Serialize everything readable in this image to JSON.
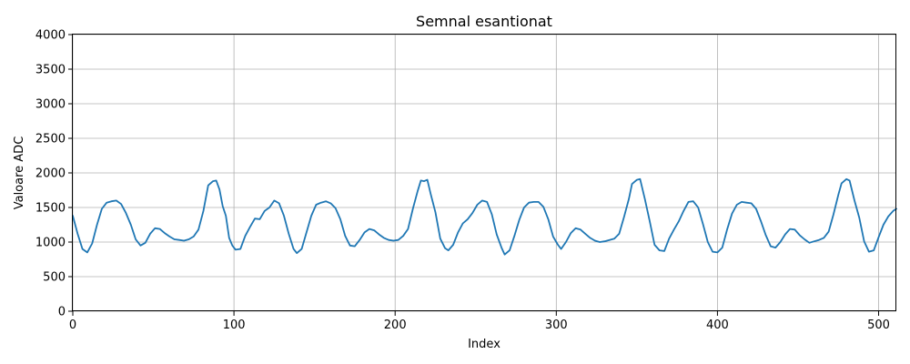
{
  "chart_data": {
    "type": "line",
    "title": "Semnal esantionat",
    "xlabel": "Index",
    "ylabel": "Valoare ADC",
    "xlim": [
      0,
      511
    ],
    "ylim": [
      0,
      4000
    ],
    "x_ticks": [
      0,
      100,
      200,
      300,
      400,
      500
    ],
    "y_ticks": [
      0,
      500,
      1000,
      1500,
      2000,
      2500,
      3000,
      3500,
      4000
    ],
    "grid": true,
    "legend": "none",
    "series": [
      {
        "color": "#1f77b4",
        "points": [
          [
            0,
            1380
          ],
          [
            3,
            1120
          ],
          [
            6,
            900
          ],
          [
            9,
            850
          ],
          [
            12,
            980
          ],
          [
            15,
            1250
          ],
          [
            18,
            1480
          ],
          [
            21,
            1570
          ],
          [
            24,
            1590
          ],
          [
            27,
            1600
          ],
          [
            30,
            1550
          ],
          [
            33,
            1420
          ],
          [
            36,
            1250
          ],
          [
            39,
            1040
          ],
          [
            42,
            950
          ],
          [
            45,
            990
          ],
          [
            48,
            1120
          ],
          [
            51,
            1200
          ],
          [
            54,
            1190
          ],
          [
            57,
            1130
          ],
          [
            60,
            1080
          ],
          [
            63,
            1040
          ],
          [
            66,
            1030
          ],
          [
            69,
            1020
          ],
          [
            72,
            1040
          ],
          [
            75,
            1080
          ],
          [
            78,
            1180
          ],
          [
            81,
            1450
          ],
          [
            84,
            1820
          ],
          [
            87,
            1880
          ],
          [
            89,
            1890
          ],
          [
            91,
            1760
          ],
          [
            93,
            1520
          ],
          [
            95,
            1380
          ],
          [
            97,
            1060
          ],
          [
            99,
            950
          ],
          [
            101,
            890
          ],
          [
            104,
            900
          ],
          [
            107,
            1090
          ],
          [
            110,
            1220
          ],
          [
            113,
            1340
          ],
          [
            116,
            1330
          ],
          [
            119,
            1450
          ],
          [
            122,
            1500
          ],
          [
            125,
            1600
          ],
          [
            128,
            1560
          ],
          [
            131,
            1380
          ],
          [
            134,
            1120
          ],
          [
            137,
            900
          ],
          [
            139,
            840
          ],
          [
            142,
            900
          ],
          [
            145,
            1140
          ],
          [
            148,
            1380
          ],
          [
            151,
            1540
          ],
          [
            154,
            1570
          ],
          [
            157,
            1590
          ],
          [
            160,
            1560
          ],
          [
            163,
            1490
          ],
          [
            166,
            1330
          ],
          [
            169,
            1090
          ],
          [
            172,
            950
          ],
          [
            175,
            940
          ],
          [
            178,
            1030
          ],
          [
            181,
            1140
          ],
          [
            184,
            1190
          ],
          [
            187,
            1170
          ],
          [
            190,
            1110
          ],
          [
            193,
            1060
          ],
          [
            196,
            1030
          ],
          [
            199,
            1020
          ],
          [
            202,
            1030
          ],
          [
            205,
            1090
          ],
          [
            208,
            1190
          ],
          [
            211,
            1480
          ],
          [
            214,
            1740
          ],
          [
            216,
            1890
          ],
          [
            218,
            1880
          ],
          [
            220,
            1900
          ],
          [
            222,
            1700
          ],
          [
            225,
            1430
          ],
          [
            228,
            1050
          ],
          [
            231,
            910
          ],
          [
            233,
            880
          ],
          [
            236,
            960
          ],
          [
            239,
            1140
          ],
          [
            242,
            1270
          ],
          [
            245,
            1330
          ],
          [
            248,
            1420
          ],
          [
            251,
            1540
          ],
          [
            254,
            1600
          ],
          [
            257,
            1580
          ],
          [
            260,
            1400
          ],
          [
            263,
            1110
          ],
          [
            266,
            920
          ],
          [
            268,
            820
          ],
          [
            271,
            880
          ],
          [
            274,
            1090
          ],
          [
            277,
            1320
          ],
          [
            280,
            1500
          ],
          [
            283,
            1570
          ],
          [
            286,
            1580
          ],
          [
            289,
            1580
          ],
          [
            292,
            1510
          ],
          [
            295,
            1330
          ],
          [
            298,
            1080
          ],
          [
            301,
            960
          ],
          [
            303,
            900
          ],
          [
            306,
            1000
          ],
          [
            309,
            1130
          ],
          [
            312,
            1200
          ],
          [
            315,
            1180
          ],
          [
            318,
            1120
          ],
          [
            321,
            1060
          ],
          [
            324,
            1020
          ],
          [
            327,
            1000
          ],
          [
            330,
            1010
          ],
          [
            333,
            1030
          ],
          [
            336,
            1050
          ],
          [
            339,
            1120
          ],
          [
            342,
            1360
          ],
          [
            345,
            1620
          ],
          [
            347,
            1840
          ],
          [
            350,
            1900
          ],
          [
            352,
            1910
          ],
          [
            355,
            1620
          ],
          [
            358,
            1300
          ],
          [
            361,
            960
          ],
          [
            364,
            880
          ],
          [
            367,
            870
          ],
          [
            370,
            1050
          ],
          [
            373,
            1180
          ],
          [
            376,
            1300
          ],
          [
            379,
            1450
          ],
          [
            382,
            1580
          ],
          [
            385,
            1590
          ],
          [
            388,
            1500
          ],
          [
            391,
            1260
          ],
          [
            394,
            1000
          ],
          [
            397,
            860
          ],
          [
            400,
            850
          ],
          [
            403,
            920
          ],
          [
            406,
            1180
          ],
          [
            409,
            1410
          ],
          [
            412,
            1540
          ],
          [
            415,
            1580
          ],
          [
            418,
            1570
          ],
          [
            421,
            1560
          ],
          [
            424,
            1480
          ],
          [
            427,
            1300
          ],
          [
            430,
            1100
          ],
          [
            433,
            940
          ],
          [
            436,
            920
          ],
          [
            439,
            1000
          ],
          [
            442,
            1110
          ],
          [
            445,
            1190
          ],
          [
            448,
            1180
          ],
          [
            451,
            1100
          ],
          [
            454,
            1040
          ],
          [
            457,
            990
          ],
          [
            460,
            1010
          ],
          [
            463,
            1030
          ],
          [
            466,
            1060
          ],
          [
            469,
            1150
          ],
          [
            472,
            1400
          ],
          [
            475,
            1680
          ],
          [
            477,
            1850
          ],
          [
            480,
            1910
          ],
          [
            482,
            1890
          ],
          [
            485,
            1600
          ],
          [
            488,
            1350
          ],
          [
            491,
            1010
          ],
          [
            494,
            860
          ],
          [
            497,
            880
          ],
          [
            500,
            1070
          ],
          [
            503,
            1250
          ],
          [
            506,
            1370
          ],
          [
            509,
            1450
          ],
          [
            511,
            1480
          ]
        ]
      }
    ]
  }
}
